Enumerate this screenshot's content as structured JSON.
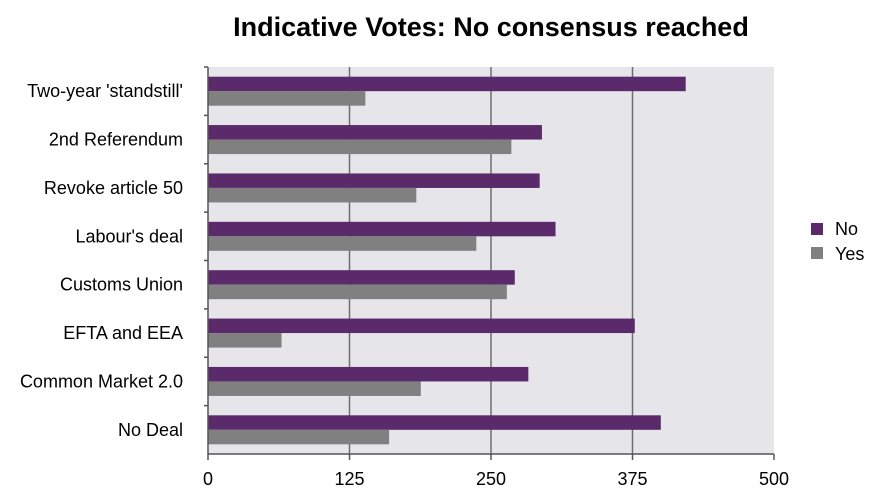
{
  "chart_data": {
    "type": "bar",
    "orientation": "horizontal",
    "title": "Indicative Votes: No consensus reached",
    "xlabel": "",
    "ylabel": "",
    "categories": [
      "Two-year 'standstill'",
      "2nd Referendum",
      "Revoke article 50",
      "Labour's deal",
      "Customs Union",
      "EFTA and EEA",
      "Common Market 2.0",
      "No Deal"
    ],
    "series": [
      {
        "name": "No",
        "color": "#5a2a6b",
        "values": [
          422,
          295,
          293,
          307,
          271,
          377,
          283,
          400
        ]
      },
      {
        "name": "Yes",
        "color": "#808080",
        "values": [
          139,
          268,
          184,
          237,
          264,
          65,
          188,
          160
        ]
      }
    ],
    "xlim": [
      0,
      500
    ],
    "xticks": [
      "0",
      "125",
      "250",
      "375",
      "500"
    ],
    "grid": true,
    "legend": "right",
    "plot_background": "#e6e6ea"
  }
}
